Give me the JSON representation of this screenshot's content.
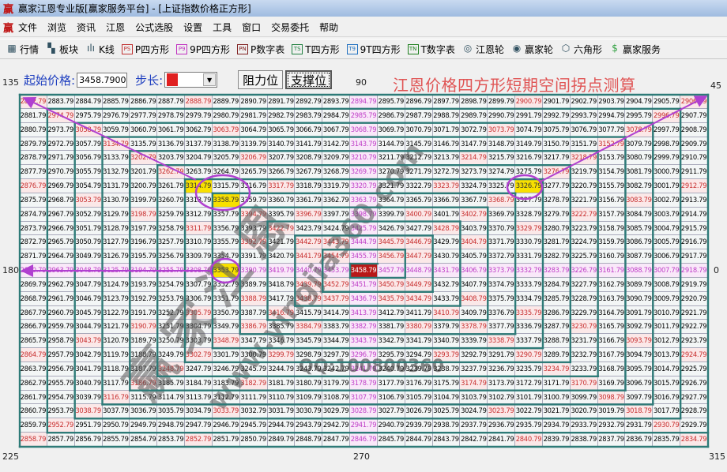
{
  "window": {
    "title": "赢家江恩专业版[赢家服务平台] - [上证指数价格正方形]",
    "logo_glyph": "赢"
  },
  "menu": [
    "文件",
    "浏览",
    "资讯",
    "江恩",
    "公式选股",
    "设置",
    "工具",
    "窗口",
    "交易委托",
    "帮助"
  ],
  "toolbar": [
    {
      "label": "行情",
      "icon": "calendar-grid-icon",
      "glyph": "▦"
    },
    {
      "label": "板块",
      "icon": "blocks-icon",
      "glyph": "▚"
    },
    {
      "label": "K线",
      "icon": "candlestick-icon",
      "glyph": "ılı"
    },
    {
      "label": "P四方形",
      "icon": "ps-icon",
      "glyph": "PS"
    },
    {
      "label": "9P四方形",
      "icon": "p9-icon",
      "glyph": "P9"
    },
    {
      "label": "P数字表",
      "icon": "pn-icon",
      "glyph": "PN"
    },
    {
      "label": "T四方形",
      "icon": "ts-icon",
      "glyph": "TS"
    },
    {
      "label": "9T四方形",
      "icon": "t9-icon",
      "glyph": "T9"
    },
    {
      "label": "T数字表",
      "icon": "tn-icon",
      "glyph": "TN"
    },
    {
      "label": "江恩轮",
      "icon": "gann-wheel-icon",
      "glyph": "◎"
    },
    {
      "label": "赢家轮",
      "icon": "winner-wheel-icon",
      "glyph": "◉"
    },
    {
      "label": "六角形",
      "icon": "hexagon-icon",
      "glyph": "⬡"
    },
    {
      "label": "赢家服务",
      "icon": "dollar-icon",
      "glyph": "$"
    }
  ],
  "controls": {
    "start_price_label": "起始价格:",
    "start_price_value": "3458.7900",
    "step_label": "步长:",
    "step_color": "#e02020",
    "resistance_button": "阻力位",
    "support_button": "支撑位"
  },
  "heading": "江恩价格四方形短期空间拐点测算",
  "angles": {
    "top_left": "135",
    "top": "90",
    "top_right": "45",
    "left": "180",
    "right": "0",
    "bottom_left": "225",
    "bottom": "270",
    "bottom_right": "315"
  },
  "colors": {
    "wall": "#2e7b78",
    "diagonal_text": "#c83030",
    "cross_text": "#c040c8",
    "highlight": "#f8e000",
    "center": "#b81818",
    "annotation": "#b040d0"
  },
  "watermark": {
    "brand": "赢家江恩",
    "site": "www.yingjia360.com",
    "qq": "QQ:100800360"
  },
  "grid": {
    "center_value": "3458.79",
    "highlighted": [
      "3314.79",
      "3358.79",
      "3353.79",
      "3326.79"
    ],
    "circled": [
      "3314.79",
      "3358.79",
      "3353.79",
      "3326.79"
    ],
    "rows": [
      [
        "2882.79",
        "2883.79",
        "2884.79",
        "2885.79",
        "2886.79",
        "2887.79",
        "2888.79",
        "2889.79",
        "2890.79",
        "2891.79",
        "2892.79",
        "2893.79",
        "2894.79",
        "2895.79",
        "2896.79",
        "2897.79",
        "2898.79",
        "2899.79",
        "2900.79",
        "2901.79",
        "2902.79",
        "2903.79",
        "2904.79",
        "2905.79",
        "2906.79"
      ],
      [
        "2881.79",
        "2974.79",
        "2975.79",
        "2976.79",
        "2977.79",
        "2978.79",
        "2979.79",
        "2980.79",
        "2981.79",
        "2982.79",
        "2983.79",
        "2984.79",
        "2985.79",
        "2986.79",
        "2987.79",
        "2988.79",
        "2989.79",
        "2990.79",
        "2991.79",
        "2992.79",
        "2993.79",
        "2994.79",
        "2995.79",
        "2996.79",
        "2907.79"
      ],
      [
        "2880.79",
        "2973.79",
        "3058.79",
        "3059.79",
        "3060.79",
        "3061.79",
        "3062.79",
        "3063.79",
        "3064.79",
        "3065.79",
        "3066.79",
        "3067.79",
        "3068.79",
        "3069.79",
        "3070.79",
        "3071.79",
        "3072.79",
        "3073.79",
        "3074.79",
        "3075.79",
        "3076.79",
        "3077.79",
        "3078.79",
        "2997.79",
        "2908.79"
      ],
      [
        "2879.79",
        "2972.79",
        "3057.79",
        "3134.79",
        "3135.79",
        "3136.79",
        "3137.79",
        "3138.79",
        "3139.79",
        "3140.79",
        "3141.79",
        "3142.79",
        "3143.79",
        "3144.79",
        "3145.79",
        "3146.79",
        "3147.79",
        "3148.79",
        "3149.79",
        "3150.79",
        "3151.79",
        "3152.79",
        "3079.79",
        "2998.79",
        "2909.79"
      ],
      [
        "2878.79",
        "2971.79",
        "3056.79",
        "3133.79",
        "3202.79",
        "3203.79",
        "3204.79",
        "3205.79",
        "3206.79",
        "3207.79",
        "3208.79",
        "3209.79",
        "3210.79",
        "3211.79",
        "3212.79",
        "3213.79",
        "3214.79",
        "3215.79",
        "3216.79",
        "3217.79",
        "3218.79",
        "3153.79",
        "3080.79",
        "2999.79",
        "2910.79"
      ],
      [
        "2877.79",
        "2970.79",
        "3055.79",
        "3132.79",
        "3201.79",
        "3262.79",
        "3263.79",
        "3264.79",
        "3265.79",
        "3266.79",
        "3267.79",
        "3268.79",
        "3269.79",
        "3270.79",
        "3271.79",
        "3272.79",
        "3273.79",
        "3274.79",
        "3275.79",
        "3276.79",
        "3219.79",
        "3154.79",
        "3081.79",
        "3000.79",
        "2911.79"
      ],
      [
        "2876.79",
        "2969.79",
        "3054.79",
        "3131.79",
        "3200.79",
        "3261.79",
        "3314.79",
        "3315.79",
        "3316.79",
        "3317.79",
        "3318.79",
        "3319.79",
        "3320.79",
        "3321.79",
        "3322.79",
        "3323.79",
        "3324.79",
        "3325.79",
        "3326.79",
        "3277.79",
        "3220.79",
        "3155.79",
        "3082.79",
        "3001.79",
        "2912.79"
      ],
      [
        "2875.79",
        "2968.79",
        "3053.79",
        "3130.79",
        "3199.79",
        "3260.79",
        "3313.79",
        "3358.79",
        "3359.79",
        "3360.79",
        "3361.79",
        "3362.79",
        "3363.79",
        "3364.79",
        "3365.79",
        "3366.79",
        "3367.79",
        "3368.79",
        "3327.79",
        "3278.79",
        "3221.79",
        "3156.79",
        "3083.79",
        "3002.79",
        "2913.79"
      ],
      [
        "2874.79",
        "2967.79",
        "3052.79",
        "3129.79",
        "3198.79",
        "3259.79",
        "3312.79",
        "3357.79",
        "3394.79",
        "3395.79",
        "3396.79",
        "3397.79",
        "3398.79",
        "3399.79",
        "3400.79",
        "3401.79",
        "3402.79",
        "3369.79",
        "3328.79",
        "3279.79",
        "3222.79",
        "3157.79",
        "3084.79",
        "3003.79",
        "2914.79"
      ],
      [
        "2873.79",
        "2966.79",
        "3051.79",
        "3128.79",
        "3197.79",
        "3258.79",
        "3311.79",
        "3356.79",
        "3393.79",
        "3422.79",
        "3423.79",
        "3424.79",
        "3425.79",
        "3426.79",
        "3427.79",
        "3428.79",
        "3403.79",
        "3370.79",
        "3329.79",
        "3280.79",
        "3223.79",
        "3158.79",
        "3085.79",
        "3004.79",
        "2915.79"
      ],
      [
        "2872.79",
        "2965.79",
        "3050.79",
        "3127.79",
        "3196.79",
        "3257.79",
        "3310.79",
        "3355.79",
        "3392.79",
        "3421.79",
        "3442.79",
        "3443.79",
        "3444.79",
        "3445.79",
        "3446.79",
        "3429.79",
        "3404.79",
        "3371.79",
        "3330.79",
        "3281.79",
        "3224.79",
        "3159.79",
        "3086.79",
        "3005.79",
        "2916.79"
      ],
      [
        "2871.79",
        "2964.79",
        "3049.79",
        "3126.79",
        "3195.79",
        "3256.79",
        "3309.79",
        "3354.79",
        "3391.79",
        "3420.79",
        "3441.79",
        "3454.79",
        "3455.79",
        "3456.79",
        "3447.79",
        "3430.79",
        "3405.79",
        "3372.79",
        "3331.79",
        "3282.79",
        "3225.79",
        "3160.79",
        "3087.79",
        "3006.79",
        "2917.79"
      ],
      [
        "2870.79",
        "2963.79",
        "3048.79",
        "3125.79",
        "3194.79",
        "3255.79",
        "3308.79",
        "3353.79",
        "3390.79",
        "3419.79",
        "3440.79",
        "3453.79",
        "3458.79",
        "3457.79",
        "3448.79",
        "3431.79",
        "3406.79",
        "3373.79",
        "3332.79",
        "3283.79",
        "3226.79",
        "3161.79",
        "3088.79",
        "3007.79",
        "2918.79"
      ],
      [
        "2869.79",
        "2962.79",
        "3047.79",
        "3124.79",
        "3193.79",
        "3254.79",
        "3307.79",
        "3352.79",
        "3389.79",
        "3418.79",
        "3439.79",
        "3452.79",
        "3451.79",
        "3450.79",
        "3449.79",
        "3432.79",
        "3407.79",
        "3374.79",
        "3333.79",
        "3284.79",
        "3227.79",
        "3162.79",
        "3089.79",
        "3008.79",
        "2919.79"
      ],
      [
        "2868.79",
        "2961.79",
        "3046.79",
        "3123.79",
        "3192.79",
        "3253.79",
        "3306.79",
        "3351.79",
        "3388.79",
        "3417.79",
        "3438.79",
        "3437.79",
        "3436.79",
        "3435.79",
        "3434.79",
        "3433.79",
        "3408.79",
        "3375.79",
        "3334.79",
        "3285.79",
        "3228.79",
        "3163.79",
        "3090.79",
        "3009.79",
        "2920.79"
      ],
      [
        "2867.79",
        "2960.79",
        "3045.79",
        "3122.79",
        "3191.79",
        "3252.79",
        "3305.79",
        "3350.79",
        "3387.79",
        "3416.79",
        "3415.79",
        "3414.79",
        "3413.79",
        "3412.79",
        "3411.79",
        "3410.79",
        "3409.79",
        "3376.79",
        "3335.79",
        "3286.79",
        "3229.79",
        "3164.79",
        "3091.79",
        "3010.79",
        "2921.79"
      ],
      [
        "2866.79",
        "2959.79",
        "3044.79",
        "3121.79",
        "3190.79",
        "3251.79",
        "3304.79",
        "3349.79",
        "3386.79",
        "3385.79",
        "3384.79",
        "3383.79",
        "3382.79",
        "3381.79",
        "3380.79",
        "3379.79",
        "3378.79",
        "3377.79",
        "3336.79",
        "3287.79",
        "3230.79",
        "3165.79",
        "3092.79",
        "3011.79",
        "2922.79"
      ],
      [
        "2865.79",
        "2958.79",
        "3043.79",
        "3120.79",
        "3189.79",
        "3250.79",
        "3303.79",
        "3348.79",
        "3347.79",
        "3346.79",
        "3345.79",
        "3344.79",
        "3343.79",
        "3342.79",
        "3341.79",
        "3340.79",
        "3339.79",
        "3338.79",
        "3337.79",
        "3288.79",
        "3231.79",
        "3166.79",
        "3093.79",
        "3012.79",
        "2923.79"
      ],
      [
        "2864.79",
        "2957.79",
        "3042.79",
        "3119.79",
        "3188.79",
        "3249.79",
        "3302.79",
        "3301.79",
        "3300.79",
        "3299.79",
        "3298.79",
        "3297.79",
        "3296.79",
        "3295.79",
        "3294.79",
        "3293.79",
        "3292.79",
        "3291.79",
        "3290.79",
        "3289.79",
        "3232.79",
        "3167.79",
        "3094.79",
        "3013.79",
        "2924.79"
      ],
      [
        "2863.79",
        "2956.79",
        "3041.79",
        "3118.79",
        "3187.79",
        "3248.79",
        "3247.79",
        "3246.79",
        "3245.79",
        "3244.79",
        "3243.79",
        "3242.79",
        "3241.79",
        "3240.79",
        "3239.79",
        "3238.79",
        "3237.79",
        "3236.79",
        "3235.79",
        "3234.79",
        "3233.79",
        "3168.79",
        "3095.79",
        "3014.79",
        "2925.79"
      ],
      [
        "2862.79",
        "2955.79",
        "3040.79",
        "3117.79",
        "3186.79",
        "3185.79",
        "3184.79",
        "3183.79",
        "3182.79",
        "3181.79",
        "3180.79",
        "3179.79",
        "3178.79",
        "3177.79",
        "3176.79",
        "3175.79",
        "3174.79",
        "3173.79",
        "3172.79",
        "3171.79",
        "3170.79",
        "3169.79",
        "3096.79",
        "3015.79",
        "2926.79"
      ],
      [
        "2861.79",
        "2954.79",
        "3039.79",
        "3116.79",
        "3115.79",
        "3114.79",
        "3113.79",
        "3112.79",
        "3111.79",
        "3110.79",
        "3109.79",
        "3108.79",
        "3107.79",
        "3106.79",
        "3105.79",
        "3104.79",
        "3103.79",
        "3102.79",
        "3101.79",
        "3100.79",
        "3099.79",
        "3098.79",
        "3097.79",
        "3016.79",
        "2927.79"
      ],
      [
        "2860.79",
        "2953.79",
        "3038.79",
        "3037.79",
        "3036.79",
        "3035.79",
        "3034.79",
        "3033.79",
        "3032.79",
        "3031.79",
        "3030.79",
        "3029.79",
        "3028.79",
        "3027.79",
        "3026.79",
        "3025.79",
        "3024.79",
        "3023.79",
        "3022.79",
        "3021.79",
        "3020.79",
        "3019.79",
        "3018.79",
        "3017.79",
        "2928.79"
      ],
      [
        "2859.79",
        "2952.79",
        "2951.79",
        "2950.79",
        "2949.79",
        "2948.79",
        "2947.79",
        "2946.79",
        "2945.79",
        "2944.79",
        "2943.79",
        "2942.79",
        "2941.79",
        "2940.79",
        "2939.79",
        "2938.79",
        "2937.79",
        "2936.79",
        "2935.79",
        "2934.79",
        "2933.79",
        "2932.79",
        "2931.79",
        "2930.79",
        "2929.79"
      ],
      [
        "2858.79",
        "2857.79",
        "2856.79",
        "2855.79",
        "2854.79",
        "2853.79",
        "2852.79",
        "2851.79",
        "2850.79",
        "2849.79",
        "2848.79",
        "2847.79",
        "2846.79",
        "2845.79",
        "2844.79",
        "2843.79",
        "2842.79",
        "2841.79",
        "2840.79",
        "2839.79",
        "2838.79",
        "2837.79",
        "2836.79",
        "2835.79",
        "2834.79"
      ]
    ]
  }
}
